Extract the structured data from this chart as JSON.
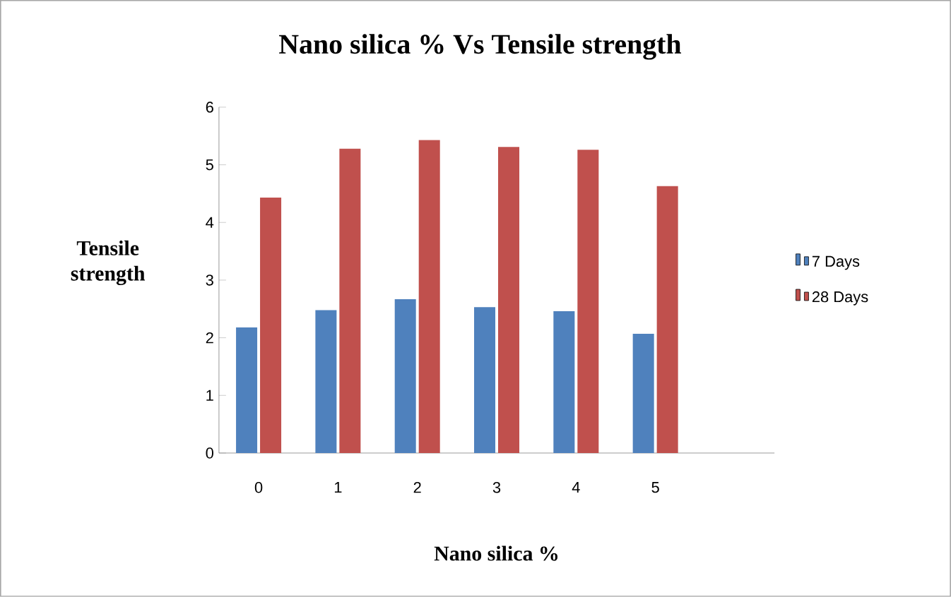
{
  "chart_data": {
    "type": "bar",
    "title": "Nano silica % Vs Tensile strength",
    "xlabel": "Nano silica %",
    "ylabel": "Tensile strength",
    "categories": [
      "0",
      "1",
      "2",
      "3",
      "4",
      "5",
      null
    ],
    "series": [
      {
        "name": "7 Days",
        "color": "#4f81bd",
        "values": [
          2.18,
          2.48,
          2.67,
          2.53,
          2.46,
          2.07,
          null
        ]
      },
      {
        "name": "28 Days",
        "color": "#c0504d",
        "values": [
          4.43,
          5.28,
          5.43,
          5.31,
          5.26,
          4.63,
          null
        ]
      }
    ],
    "ylim": [
      0,
      6
    ],
    "yticks": [
      0,
      1,
      2,
      3,
      4,
      5,
      6
    ],
    "grid": false,
    "legend": "right"
  }
}
